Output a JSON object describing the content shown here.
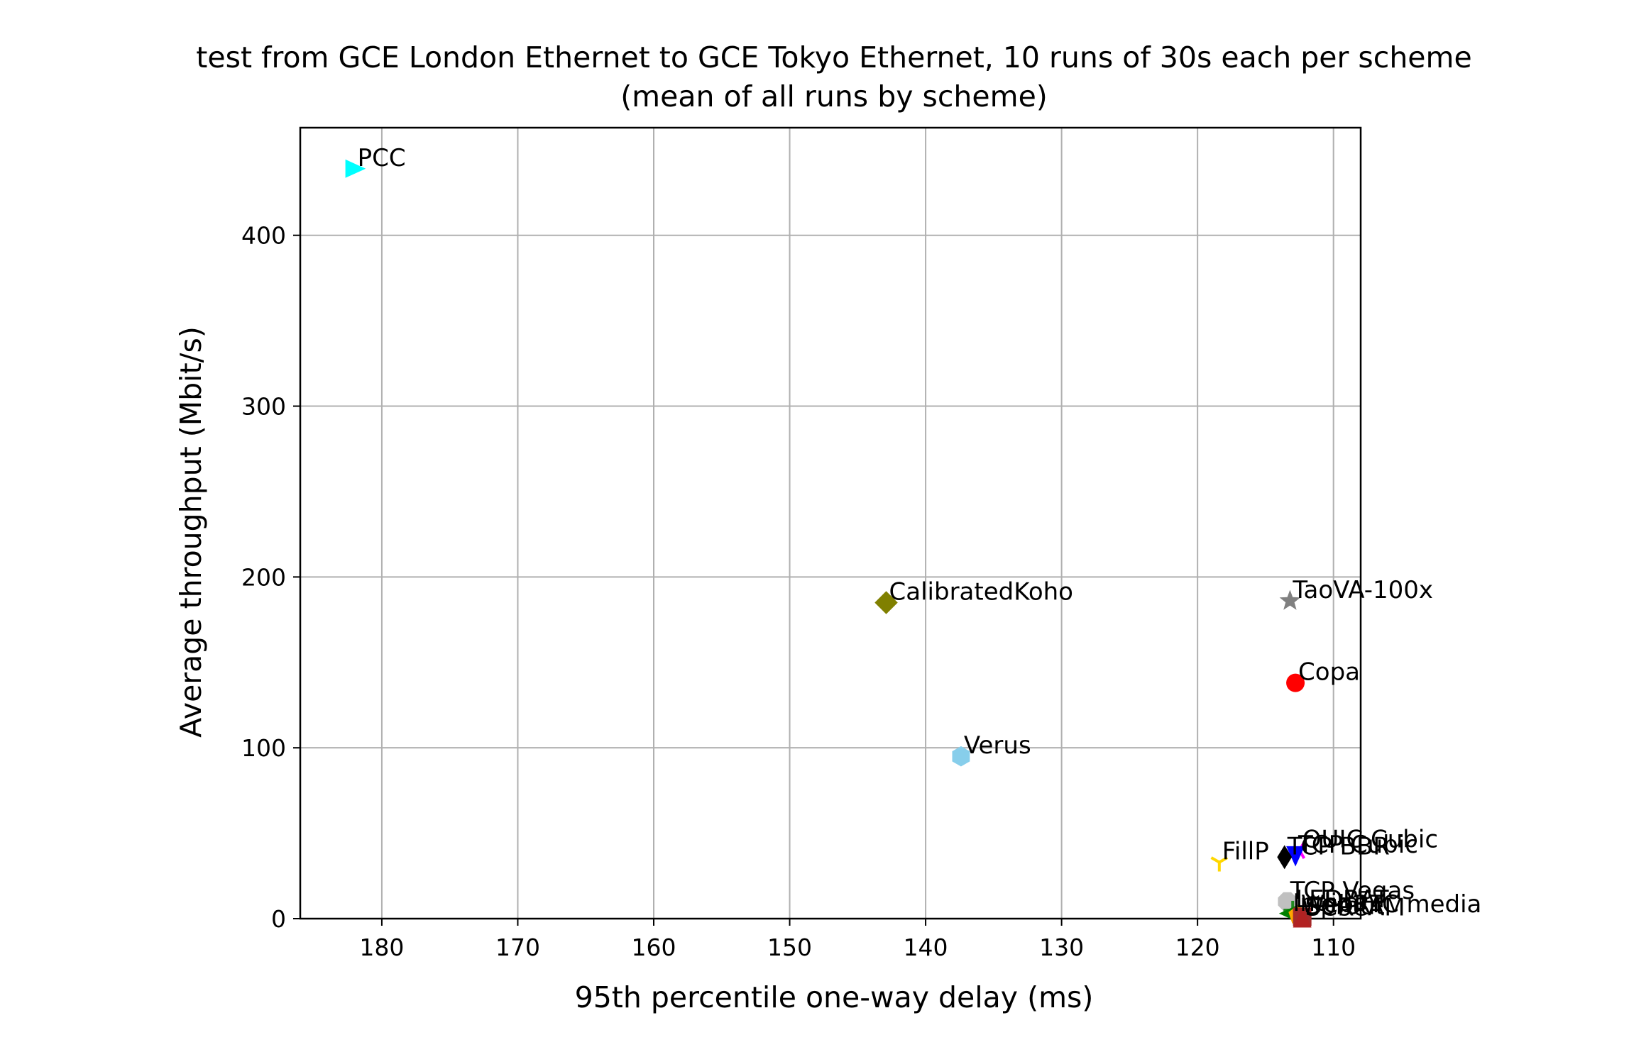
{
  "chart_data": {
    "type": "scatter",
    "title": "test from GCE London Ethernet to GCE Tokyo Ethernet, 10 runs of 30s each per scheme",
    "subtitle": "(mean of all runs by scheme)",
    "xlabel": "95th percentile one-way delay (ms)",
    "ylabel": "Average throughput (Mbit/s)",
    "xlim": [
      186,
      108
    ],
    "ylim": [
      0,
      463
    ],
    "x_inverted": true,
    "grid": true,
    "x_ticks": [
      180,
      170,
      160,
      150,
      140,
      130,
      120,
      110
    ],
    "y_ticks": [
      0,
      100,
      200,
      300,
      400
    ],
    "points": [
      {
        "label": "PCC",
        "x": 182.0,
        "y": 439,
        "marker": "triangle-right",
        "color": "#00ffff"
      },
      {
        "label": "CalibratedKoho",
        "x": 142.9,
        "y": 185,
        "marker": "diamond",
        "color": "#808000"
      },
      {
        "label": "TaoVA-100x",
        "x": 113.2,
        "y": 186,
        "marker": "star",
        "color": "#808080"
      },
      {
        "label": "Copa",
        "x": 112.8,
        "y": 138,
        "marker": "circle",
        "color": "#ff0000"
      },
      {
        "label": "Verus",
        "x": 137.4,
        "y": 95,
        "marker": "hexagon",
        "color": "#87ceeb"
      },
      {
        "label": "QUIC Cubic",
        "x": 112.5,
        "y": 40,
        "marker": "tri-left",
        "color": "#ff00ff"
      },
      {
        "label": "TCP Cubic",
        "x": 112.8,
        "y": 37,
        "marker": "triangle-down",
        "color": "#0000ff"
      },
      {
        "label": "TCP BBR",
        "x": 113.6,
        "y": 36,
        "marker": "thin-diamond",
        "color": "#000000"
      },
      {
        "label": "FillP",
        "x": 118.4,
        "y": 33,
        "marker": "tri-down",
        "color": "#ffd700"
      },
      {
        "label": "TCP Vegas",
        "x": 113.4,
        "y": 10,
        "marker": "octagon",
        "color": "#c0c0c0"
      },
      {
        "label": "LEDBAT",
        "x": 113.0,
        "y": 5,
        "marker": "plus",
        "color": "#228b22"
      },
      {
        "label": "Indigo",
        "x": 113.2,
        "y": 3,
        "marker": "triangle-left",
        "color": "#008000"
      },
      {
        "label": "WebRTC media",
        "x": 112.6,
        "y": 2,
        "marker": "pentagon",
        "color": "#ffa500"
      },
      {
        "label": "Sprout",
        "x": 112.3,
        "y": 1,
        "marker": "square",
        "color": "#a52a2a"
      },
      {
        "label": "SCReAM",
        "x": 112.3,
        "y": 0.2,
        "marker": "triangle-up",
        "color": "#b22222"
      }
    ]
  }
}
